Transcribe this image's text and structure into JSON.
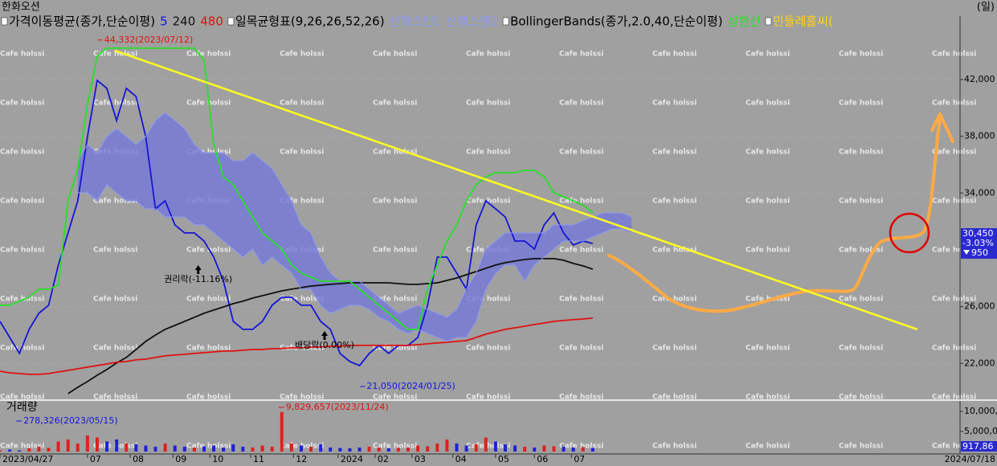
{
  "chart_data": {
    "type": "line",
    "title": "한화오션",
    "period_label": "(일)",
    "x": [
      0,
      5,
      10,
      15,
      20,
      25,
      30,
      35,
      40,
      45,
      50,
      55,
      60,
      65,
      70,
      75,
      80,
      85,
      90,
      95,
      100,
      105,
      110,
      115,
      120,
      125,
      130,
      135,
      140,
      145,
      150,
      155,
      160,
      165,
      170,
      175,
      180,
      185,
      190,
      195,
      200,
      205,
      210,
      215,
      220,
      225,
      230,
      235,
      240,
      245,
      250,
      255,
      260,
      265,
      270,
      275,
      280,
      285,
      290,
      295,
      300,
      305,
      310,
      315,
      320,
      325
    ],
    "xlim": [
      0,
      494
    ],
    "xticks": [
      {
        "value": 0,
        "label": "2023/04/27"
      },
      {
        "value": 45,
        "label": "07"
      },
      {
        "value": 67,
        "label": "08"
      },
      {
        "value": 89,
        "label": "09"
      },
      {
        "value": 108,
        "label": "10"
      },
      {
        "value": 129,
        "label": "11"
      },
      {
        "value": 151,
        "label": "12"
      },
      {
        "value": 174,
        "label": "2024"
      },
      {
        "value": 193,
        "label": "02"
      },
      {
        "value": 212,
        "label": "03"
      },
      {
        "value": 233,
        "label": "04"
      },
      {
        "value": 255,
        "label": "05"
      },
      {
        "value": 275,
        "label": "06"
      },
      {
        "value": 294,
        "label": "07"
      }
    ],
    "last_date": "2024/07/18",
    "ylim": [
      19470,
      46470
    ],
    "yticks": [
      {
        "value": 22000,
        "label": "22,000"
      },
      {
        "value": 26000,
        "label": "26,000"
      },
      {
        "value": 34000,
        "label": "34,000"
      },
      {
        "value": 38000,
        "label": "38,000"
      },
      {
        "value": 42000,
        "label": "42,000"
      }
    ],
    "grid": true,
    "watermark": "Cafe holssi",
    "indicators": [
      {
        "title": "가격이동평균(종가,단순이평)",
        "series": [
          {
            "name": "5",
            "color": "#1515d8",
            "values": [
              24960,
              23830,
              22700,
              24400,
              25530,
              26100,
              28930,
              31190,
              33450,
              37980,
              41940,
              41380,
              39110,
              41380,
              40810,
              37980,
              32890,
              33450,
              31760,
              31190,
              31190,
              30620,
              29490,
              27790,
              24960,
              24400,
              24400,
              24960,
              26100,
              26660,
              26660,
              26100,
              26100,
              24960,
              24400,
              22700,
              22130,
              21850,
              22700,
              23270,
              22700,
              23270,
              23270,
              23830,
              26100,
              29490,
              29490,
              28360,
              27230,
              31760,
              33450,
              32890,
              32320,
              30620,
              30620,
              30060,
              31760,
              32600,
              31190,
              30340,
              30620,
              30450,
              null,
              null,
              null,
              null
            ]
          },
          {
            "name": "240",
            "color": "#101010",
            "values": [
              null,
              null,
              null,
              null,
              null,
              null,
              null,
              19870,
              20320,
              20720,
              21170,
              21570,
              22020,
              22420,
              22980,
              23550,
              24000,
              24400,
              24680,
              24960,
              25250,
              25530,
              25760,
              25980,
              26210,
              26380,
              26600,
              26770,
              26940,
              27110,
              27230,
              27340,
              27450,
              27510,
              27570,
              27620,
              27680,
              27680,
              27680,
              27680,
              27680,
              27620,
              27570,
              27570,
              27620,
              27680,
              27850,
              28020,
              28250,
              28470,
              28700,
              28930,
              29100,
              29210,
              29320,
              29380,
              29380,
              29380,
              29270,
              29040,
              28870,
              28640,
              null,
              null,
              null,
              null
            ]
          },
          {
            "name": "480",
            "color": "#e01010",
            "values": [
              21450,
              21340,
              21280,
              21230,
              21230,
              21280,
              21400,
              21510,
              21620,
              21740,
              21850,
              21960,
              22080,
              22130,
              22250,
              22300,
              22420,
              22530,
              22590,
              22640,
              22700,
              22760,
              22810,
              22870,
              22870,
              22930,
              22980,
              22980,
              23040,
              23040,
              23100,
              23100,
              23150,
              23150,
              23210,
              23210,
              23270,
              23270,
              23270,
              23270,
              23270,
              23270,
              23270,
              23320,
              23380,
              23440,
              23490,
              23550,
              23600,
              23830,
              24060,
              24230,
              24400,
              24510,
              24620,
              24740,
              24850,
              24960,
              25020,
              25080,
              25130,
              25190,
              null,
              null,
              null,
              null
            ]
          }
        ]
      },
      {
        "title": "일목균형표(9,26,26,52,26)",
        "cloud": "#7478d8",
        "series": [
          {
            "name": "선행스팬1",
            "color": "#8f9af0",
            "values": [
              null,
              null,
              null,
              null,
              null,
              null,
              null,
              null,
              36280,
              37420,
              36850,
              37980,
              38550,
              37980,
              37420,
              37980,
              39110,
              39680,
              39110,
              38550,
              37420,
              36850,
              36850,
              36850,
              36280,
              36280,
              36850,
              36280,
              35720,
              34590,
              33450,
              31760,
              31190,
              29490,
              28360,
              27790,
              27790,
              27790,
              27230,
              26660,
              26100,
              25530,
              25810,
              26100,
              25810,
              25530,
              25250,
              25810,
              27230,
              28360,
              30060,
              30620,
              31190,
              31190,
              31190,
              31190,
              31190,
              31760,
              31760,
              31760,
              32040,
              32320,
              32600,
              32600,
              32600,
              32320
            ]
          },
          {
            "name": "선행스팬2",
            "color": "#8f9af0",
            "values": [
              null,
              null,
              null,
              null,
              null,
              null,
              null,
              null,
              34020,
              34020,
              33450,
              34590,
              34020,
              33450,
              33450,
              32890,
              32890,
              32320,
              32320,
              32320,
              31760,
              31760,
              31190,
              30620,
              30060,
              29490,
              30060,
              28930,
              29490,
              28930,
              28360,
              27230,
              27230,
              26100,
              25530,
              25810,
              26100,
              26100,
              25810,
              25250,
              24960,
              24400,
              24110,
              24400,
              24110,
              23830,
              23550,
              23830,
              23830,
              24960,
              27230,
              28360,
              28930,
              28930,
              27790,
              28930,
              29490,
              30060,
              30620,
              30620,
              30620,
              30910,
              31190,
              31470,
              31470,
              31190
            ]
          }
        ]
      },
      {
        "title": "BollingerBands(종가,2.0,40,단순이평)",
        "series": [
          {
            "name": "상한선",
            "color": "#27e027",
            "values": [
              26100,
              26100,
              26380,
              26660,
              27230,
              27230,
              27510,
              33450,
              35720,
              40250,
              43640,
              44210,
              44210,
              44210,
              44210,
              44210,
              44210,
              44210,
              44210,
              44210,
              44210,
              43360,
              37420,
              35150,
              34590,
              33450,
              32320,
              31190,
              30620,
              30060,
              28930,
              28360,
              28080,
              27790,
              27790,
              27790,
              27790,
              27230,
              26660,
              26100,
              25530,
              24960,
              24400,
              24400,
              27230,
              28930,
              30620,
              31760,
              33450,
              34590,
              35150,
              35430,
              35430,
              35430,
              35600,
              35600,
              35150,
              34020,
              33740,
              33450,
              33170,
              32600,
              null,
              null,
              null,
              null
            ]
          }
        ]
      },
      {
        "title": "민들레홀씨(",
        "color": "#ffd21a",
        "series": []
      }
    ],
    "trendline": {
      "x": [
        59,
        472
      ],
      "values": [
        44040,
        24400
      ],
      "color": "#ffff20"
    },
    "price_labels": [
      {
        "text": "44,332(2023/07/12)",
        "x": 52,
        "value": 44332,
        "color": "#e01010"
      },
      {
        "text": "21,050(2024/01/25)",
        "x": 187,
        "value": 21050,
        "color": "#1515d8"
      }
    ],
    "events": [
      {
        "text": "권리락(-11.16%)",
        "x": 102
      },
      {
        "text": "배당락(0.00%)",
        "x": 167
      }
    ],
    "price_box": {
      "value": 30450,
      "label": "30,450",
      "change": "-3.03%",
      "diff": "950",
      "color": "#2a2ad0"
    },
    "volume": {
      "title": "거래량",
      "ylim": [
        0,
        12000000
      ],
      "yticks": [
        {
          "value": 5000000,
          "label": "5,000,00"
        },
        {
          "value": 10000000,
          "label": "10,000,0"
        }
      ],
      "up_color": "#e02020",
      "down_color": "#2020d8",
      "values": [
        300000,
        500000,
        278326,
        800000,
        1200000,
        900000,
        2500000,
        3000000,
        2000000,
        4000000,
        3500000,
        2500000,
        3000000,
        2000000,
        1800000,
        1500000,
        1200000,
        2000000,
        1500000,
        1200000,
        1000000,
        1300000,
        1500000,
        1000000,
        1800000,
        1200000,
        1000000,
        1500000,
        1200000,
        9829657,
        2000000,
        1500000,
        1200000,
        1800000,
        1000000,
        900000,
        800000,
        1000000,
        1200000,
        1000000,
        800000,
        900000,
        1000000,
        1500000,
        1300000,
        2000000,
        3000000,
        2000000,
        1500000,
        1800000,
        3500000,
        2500000,
        1800000,
        1500000,
        1200000,
        1000000,
        1500000,
        1300000,
        1200000,
        1000000,
        1100000,
        917864,
        null,
        null,
        null,
        null
      ],
      "min_label": {
        "text": "278,326(2023/05/15)",
        "value": 278326,
        "color": "#1515d8"
      },
      "max_label": {
        "text": "9,829,657(2023/11/24)",
        "value": 9829657,
        "color": "#e01010"
      },
      "last": {
        "value": 917864,
        "label": "917,86",
        "color": "#2a2ad0"
      }
    }
  }
}
